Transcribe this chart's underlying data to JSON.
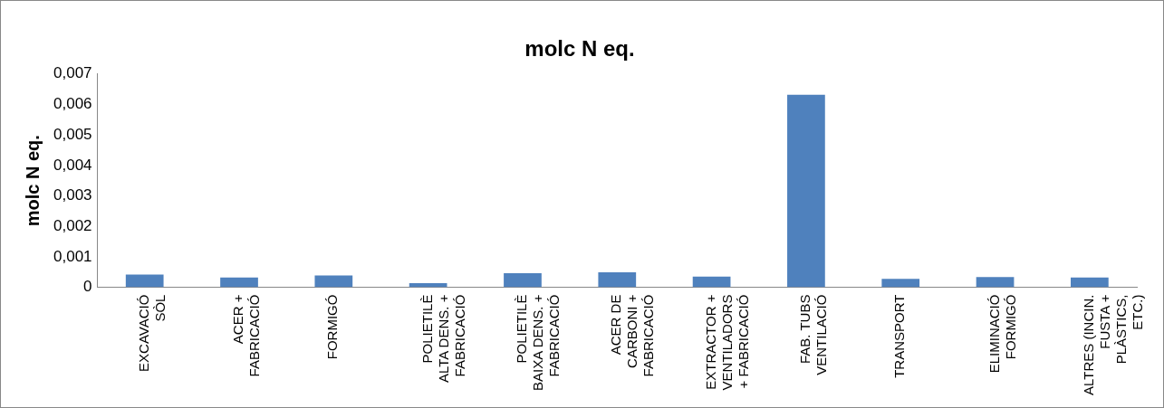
{
  "chart_data": {
    "type": "bar",
    "title": "molc N eq.",
    "ylabel": "molc N eq.",
    "categories": [
      "EXCAVACIÓ\nSÒL",
      "ACER +\nFABRICACIÓ",
      "FORMIGÓ",
      "POLIETILÈ\nALTA DENS. +\nFABRICACIÓ",
      "POLIETILÈ\nBAIXA DENS. +\nFABRICACIÓ",
      "ACER DE\nCARBONI +\nFABRICACIÓ",
      "EXTRACTOR +\nVENTILADORS\n+ FABRICACIÓ",
      "FAB. TUBS\nVENTILACIÓ",
      "TRANSPORT",
      "ELIMINACIÓ\nFORMIGÓ",
      "ALTRES (INCIN.\nFUSTA +\nPLÀSTICS,\nETC.)"
    ],
    "values": [
      0.00042,
      0.00032,
      0.00039,
      0.00014,
      0.00046,
      0.00049,
      0.00035,
      0.00632,
      0.00028,
      0.00034,
      0.00032
    ],
    "color": "#4f81bd",
    "ylim": [
      0,
      0.007
    ],
    "yticks": [
      {
        "value": 0,
        "label": "0"
      },
      {
        "value": 0.001,
        "label": "0,001"
      },
      {
        "value": 0.002,
        "label": "0,002"
      },
      {
        "value": 0.003,
        "label": "0,003"
      },
      {
        "value": 0.004,
        "label": "0,004"
      },
      {
        "value": 0.005,
        "label": "0,005"
      },
      {
        "value": 0.006,
        "label": "0,006"
      },
      {
        "value": 0.007,
        "label": "0,007"
      }
    ],
    "grid": false,
    "legend": false
  }
}
